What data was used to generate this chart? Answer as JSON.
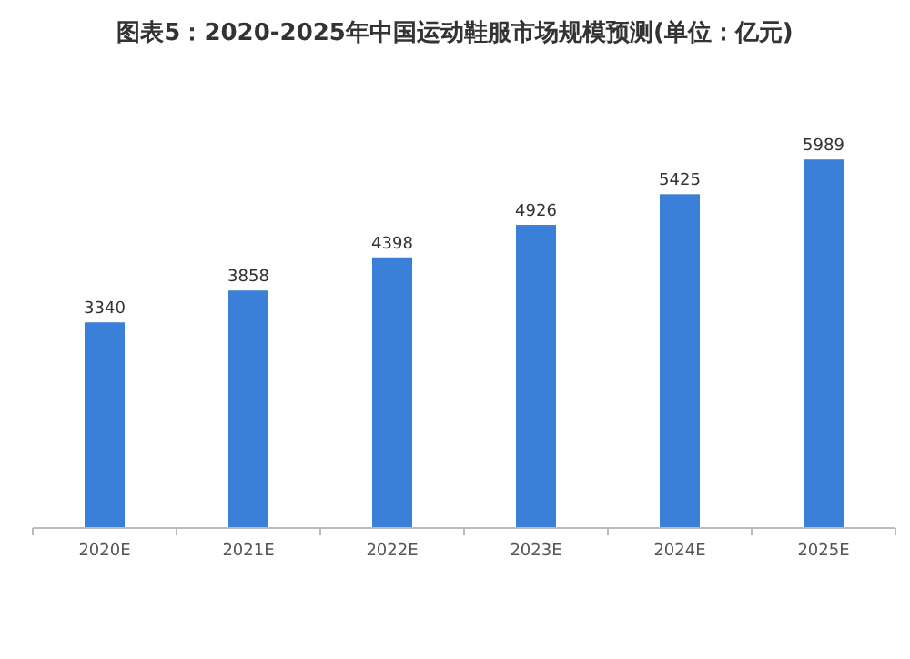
{
  "chart_data": {
    "type": "bar",
    "title": "图表5：2020-2025年中国运动鞋服市场规模预测(单位：亿元)",
    "categories": [
      "2020E",
      "2021E",
      "2022E",
      "2023E",
      "2024E",
      "2025E"
    ],
    "values": [
      3340,
      3858,
      4398,
      4926,
      5425,
      5989
    ],
    "color": "#3a80d9",
    "data_labels": true
  }
}
